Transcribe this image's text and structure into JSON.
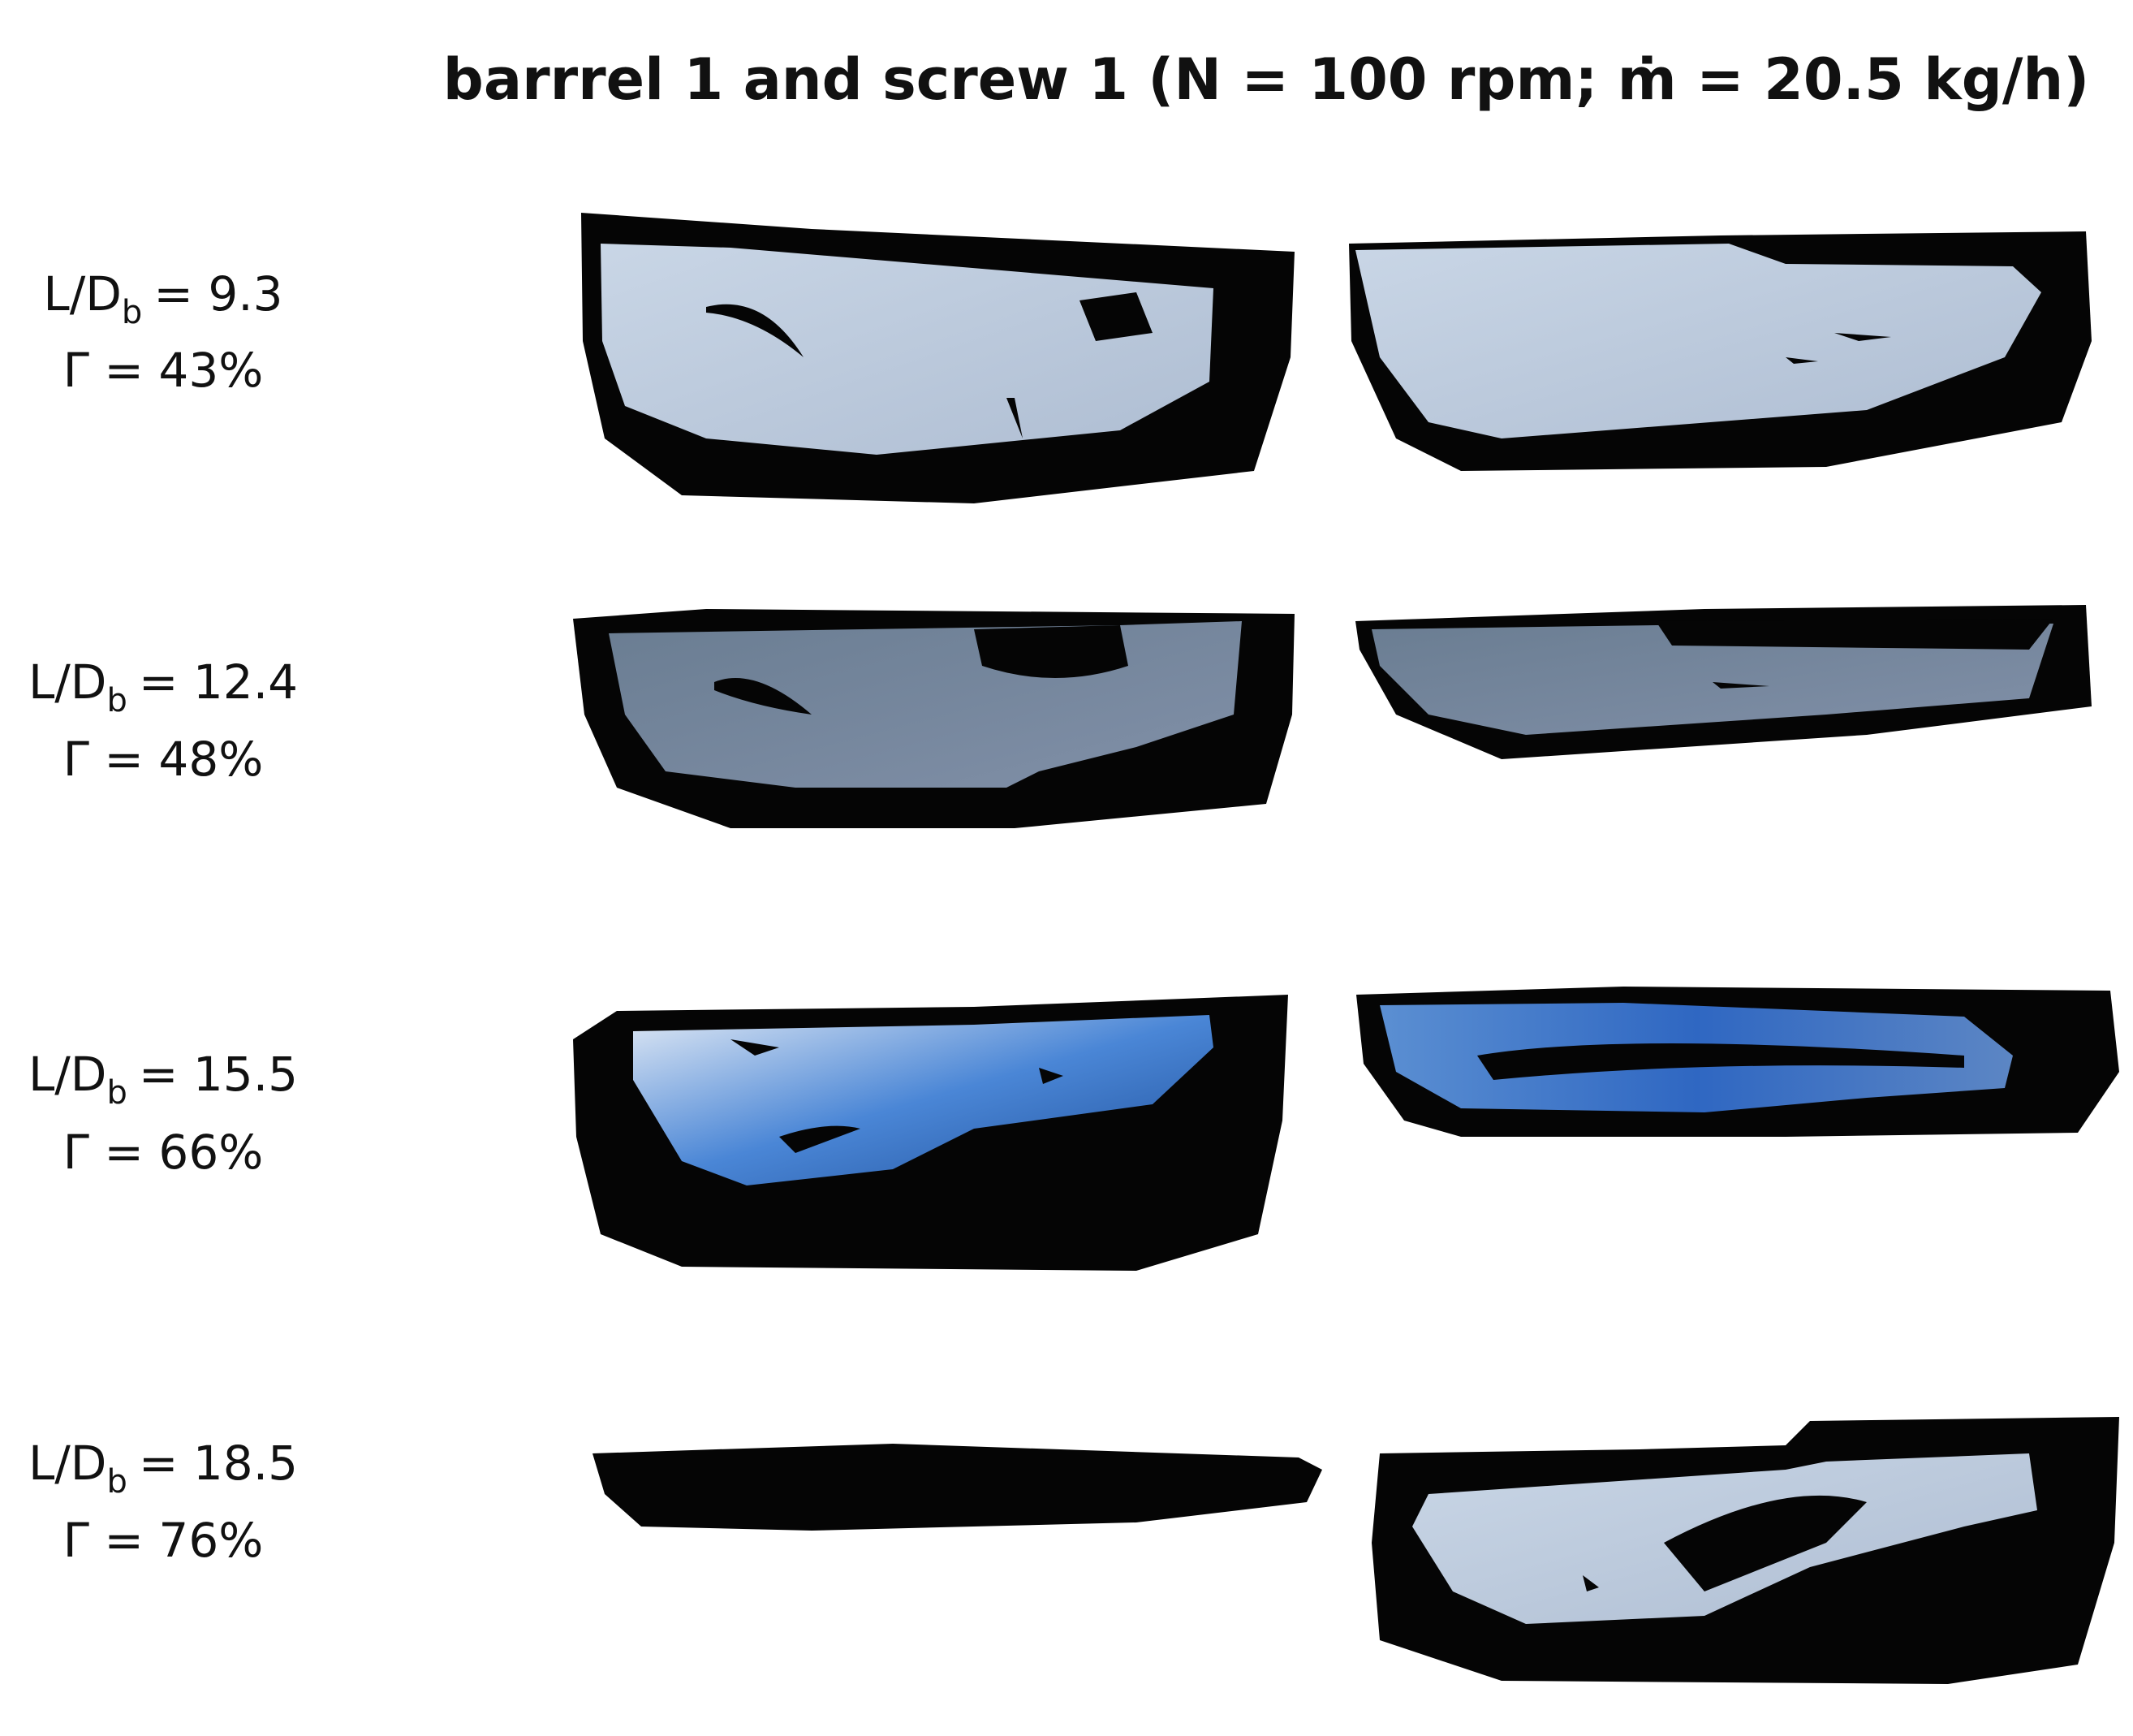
{
  "header": {
    "title": "barrrel 1 and screw 1 (N = 100 rpm; ṁ = 20.5 kg/h)"
  },
  "rows": [
    {
      "lhs": "L/D",
      "subscript": "b",
      "value": "= 9.3",
      "gamma": "Γ = 43%"
    },
    {
      "lhs": "L/D",
      "subscript": "b",
      "value": "= 12.4",
      "gamma": "Γ = 48%"
    },
    {
      "lhs": "L/D",
      "subscript": "b",
      "value": "= 15.5",
      "gamma": "Γ = 66%"
    },
    {
      "lhs": "L/D",
      "subscript": "b",
      "value": "= 18.5",
      "gamma": "Γ = 76%"
    }
  ]
}
